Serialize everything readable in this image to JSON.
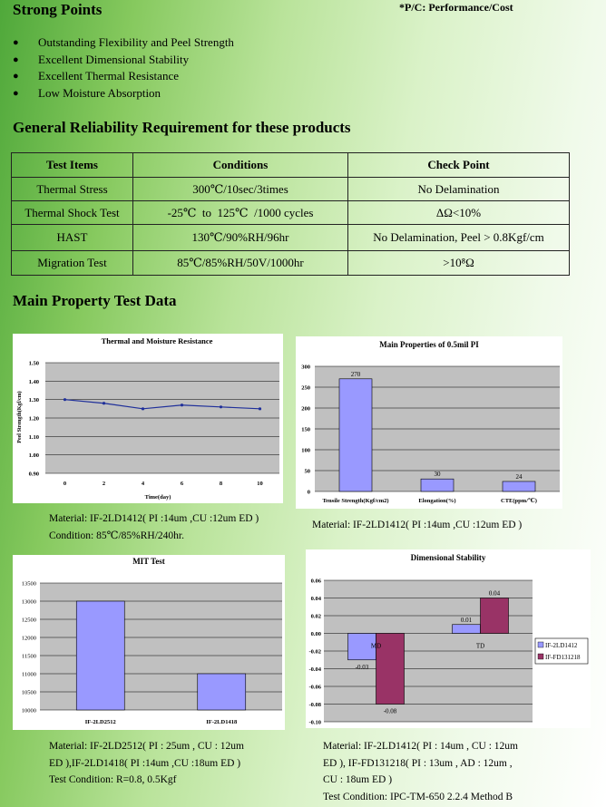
{
  "header": {
    "title": "Strong Points",
    "note": "*P/C: Performance/Cost"
  },
  "bullets": [
    "Outstanding Flexibility and Peel Strength",
    "Excellent Dimensional Stability",
    "Excellent Thermal Resistance",
    "Low Moisture Absorption"
  ],
  "reliability": {
    "title": "General Reliability Requirement for these products",
    "headers": [
      "Test Items",
      "Conditions",
      "Check Point"
    ],
    "rows": [
      [
        "Thermal Stress",
        "300℃/10sec/3times",
        "No Delamination"
      ],
      [
        "Thermal Shock Test",
        "-25℃  to  125℃  /1000 cycles",
        "ΔΩ<10%"
      ],
      [
        "HAST",
        "130℃/90%RH/96hr",
        "No Delamination, Peel > 0.8Kgf/cm"
      ],
      [
        "Migration Test",
        "85℃/85%RH/50V/1000hr",
        ">10⁸Ω"
      ]
    ]
  },
  "property": {
    "title": "Main Property Test Data"
  },
  "captions": {
    "c1": [
      "Material: IF-2LD1412( PI :14um ,CU :12um ED )",
      "Condition: 85℃/85%RH/240hr."
    ],
    "c2": [
      "Material: IF-2LD1412( PI :14um ,CU :12um ED )"
    ],
    "c3": [
      "Material: IF-2LD2512( PI : 25um , CU : 12um",
      "ED ),IF-2LD1418( PI :14um ,CU :18um ED )",
      "Test Condition: R=0.8, 0.5Kgf"
    ],
    "c4": [
      "Material: IF-2LD1412( PI : 14um , CU : 12um",
      "ED ), IF-FD131218( PI : 13um , AD : 12um ,",
      "CU : 18um ED )",
      "Test Condition: IPC-TM-650 2.2.4 Method B"
    ]
  },
  "chart_data": [
    {
      "type": "line",
      "title": "Thermal and Moisture Resistance",
      "xlabel": "Time(day)",
      "ylabel": "Peel Strength(Kgf/cm)",
      "x": [
        0,
        2,
        4,
        6,
        8,
        10
      ],
      "values": [
        1.3,
        1.28,
        1.25,
        1.27,
        1.26,
        1.25
      ],
      "xticks": [
        "0",
        "2",
        "4",
        "6",
        "8",
        "10"
      ],
      "yticks": [
        "0.90",
        "1.00",
        "1.10",
        "1.20",
        "1.30",
        "1.40",
        "1.50"
      ],
      "ylim": [
        0.9,
        1.5
      ],
      "color": "#1f2f9a"
    },
    {
      "type": "bar",
      "title": "Main Properties of 0.5mil PI",
      "categories": [
        "Tensile Strength(Kgf/cm2)",
        "Elongation(%)",
        "CTE(ppm/℃)"
      ],
      "values": [
        270,
        30,
        24
      ],
      "labels": [
        "270",
        "30",
        "24"
      ],
      "yticks": [
        "0",
        "50",
        "100",
        "150",
        "200",
        "250",
        "300"
      ],
      "ylim": [
        0,
        300
      ],
      "color": "#9999ff"
    },
    {
      "type": "bar",
      "title": "MIT Test",
      "categories": [
        "IF-2LD2512",
        "IF-2LD1418"
      ],
      "values": [
        13000,
        11000
      ],
      "yticks": [
        "10000",
        "10500",
        "11000",
        "11500",
        "12000",
        "12500",
        "13000",
        "13500"
      ],
      "ylim": [
        10000,
        13500
      ],
      "color": "#9999ff"
    },
    {
      "type": "bar",
      "title": "Dimensional Stability",
      "categories": [
        "MD",
        "TD"
      ],
      "series": [
        {
          "name": "IF-2LD1412",
          "values": [
            -0.03,
            0.01
          ],
          "labels": [
            "-0.03",
            "0.01"
          ],
          "color": "#9999ff"
        },
        {
          "name": "IF-FD131218",
          "values": [
            -0.08,
            0.04
          ],
          "labels": [
            "-0.08",
            "0.04"
          ],
          "color": "#993366"
        }
      ],
      "yticks": [
        "-0.10",
        "-0.08",
        "-0.06",
        "-0.04",
        "-0.02",
        "0.00",
        "0.02",
        "0.04",
        "0.06"
      ],
      "ylim": [
        -0.1,
        0.06
      ],
      "legend": "right"
    }
  ]
}
